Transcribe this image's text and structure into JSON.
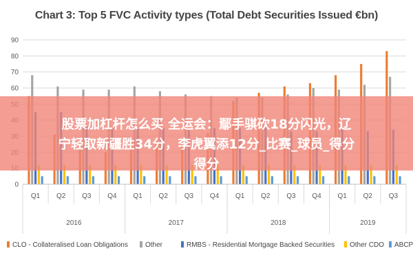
{
  "chart_data": {
    "type": "bar",
    "title": "Chart 3: Top 5 FVC Activity types (Total Debt Securities Issued €bn)",
    "xlabel": "",
    "ylabel": "",
    "ylim": [
      0,
      90
    ],
    "yticks": [
      0,
      10,
      20,
      30,
      40,
      50,
      60,
      70,
      80,
      90
    ],
    "grid": true,
    "legend_position": "bottom",
    "categories": [
      "Q1",
      "Q2",
      "Q3",
      "Q4",
      "Q1",
      "Q2",
      "Q3",
      "Q4",
      "Q1",
      "Q2",
      "Q3",
      "Q4",
      "Q1",
      "Q2",
      "Q3"
    ],
    "groups": [
      {
        "label": "2016",
        "count": 4
      },
      {
        "label": "2017",
        "count": 4
      },
      {
        "label": "2018",
        "count": 4
      },
      {
        "label": "2019",
        "count": 3
      }
    ],
    "series": [
      {
        "name": "CLO - Collateralised Loan Obligations",
        "color": "#ed7d31",
        "values": [
          55,
          31,
          22,
          20,
          27,
          27,
          27,
          32,
          52,
          57,
          61,
          63,
          68,
          75,
          83
        ]
      },
      {
        "name": "Other",
        "color": "#a5a5a5",
        "values": [
          68,
          61,
          59,
          59,
          61,
          58,
          56,
          55,
          54,
          54,
          56,
          60,
          59,
          62,
          67
        ]
      },
      {
        "name": "RMBS - Residential Mortgage Backed Securities",
        "color": "#4472c4",
        "values": [
          45,
          45,
          36,
          35,
          35,
          35,
          35,
          35,
          35,
          36,
          33,
          33,
          34,
          33,
          34
        ]
      },
      {
        "name": "Other CDO",
        "color": "#ffc000",
        "values": [
          12,
          12,
          12,
          12,
          12,
          12,
          12,
          12,
          12,
          12,
          12,
          12,
          12,
          12,
          12
        ]
      },
      {
        "name": "ABCP",
        "color": "#5b9bd5",
        "values": [
          5,
          5,
          5,
          5,
          5,
          5,
          5,
          5,
          5,
          5,
          5,
          5,
          5,
          5,
          5
        ]
      }
    ]
  },
  "overlay": {
    "line1": "股票加杠杆怎么买 全运会：鄢手骐砍18分闪光，辽",
    "line2": "宁轻取新疆胜34分，李虎翼添12分_比赛_球员_得分",
    "line3": "得分"
  }
}
